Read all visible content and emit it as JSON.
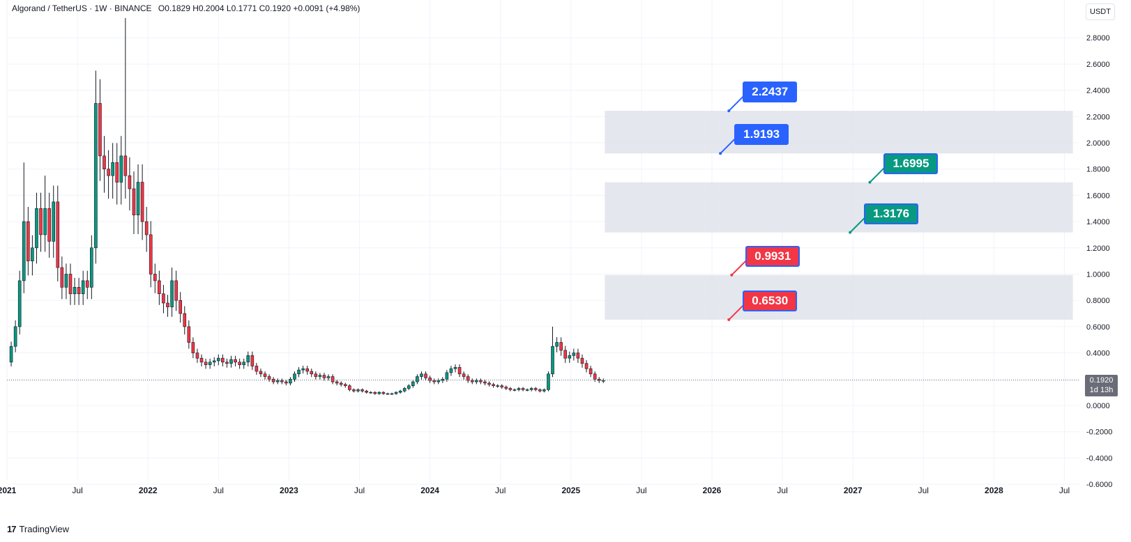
{
  "header": {
    "symbol": "Algorand / TetherUS · 1W · BINANCE",
    "ohlc": "O0.1829  H0.2004  L0.1771  C0.1920  +0.0091 (+4.98%)"
  },
  "currency": "USDT",
  "last_price": {
    "value": "0.1920",
    "countdown": "1d 13h"
  },
  "brand": {
    "logo": "17",
    "name": "TradingView"
  },
  "colors": {
    "up": "#089981",
    "down": "#f23645",
    "zone": "#e0e3eb",
    "callout_blue": "#2962ff",
    "callout_green": "#089981",
    "callout_red": "#f23645"
  },
  "chart_data": {
    "type": "candlestick",
    "y_tick_labels": [
      "2.8000",
      "2.6000",
      "2.4000",
      "2.2000",
      "2.0000",
      "1.8000",
      "1.6000",
      "1.4000",
      "1.2000",
      "1.0000",
      "0.8000",
      "0.6000",
      "0.4000",
      "0.2000",
      "0.0000",
      "-0.2000",
      "-0.4000",
      "-0.6000"
    ],
    "x_tick_labels": [
      "2021",
      "Jul",
      "2022",
      "Jul",
      "2023",
      "Jul",
      "2024",
      "Jul",
      "2025",
      "Jul",
      "2026",
      "Jul",
      "2027",
      "Jul",
      "2028",
      "Jul"
    ],
    "x_ticks": [
      2021.0,
      2021.5,
      2022.0,
      2022.5,
      2023.0,
      2023.5,
      2024.0,
      2024.5,
      2025.0,
      2025.5,
      2026.0,
      2026.5,
      2027.0,
      2027.5,
      2028.0,
      2028.5
    ],
    "ylim": [
      -0.65,
      2.95
    ],
    "xlim": [
      2021.0,
      2028.6
    ],
    "grid": true,
    "zones": [
      {
        "y_from": 1.9193,
        "y_to": 2.2437,
        "x_from": 2025.24,
        "x_to": 2028.56
      },
      {
        "y_from": 1.3176,
        "y_to": 1.6995,
        "x_from": 2025.24,
        "x_to": 2028.56
      },
      {
        "y_from": 0.653,
        "y_to": 0.9931,
        "x_from": 2025.24,
        "x_to": 2028.56
      }
    ],
    "annotations": [
      {
        "label": "2.2437",
        "value": 2.2437,
        "x": 2026.12,
        "color": "blue"
      },
      {
        "label": "1.9193",
        "value": 1.9193,
        "x": 2026.06,
        "color": "blue"
      },
      {
        "label": "1.6995",
        "value": 1.6995,
        "x": 2027.12,
        "color": "green"
      },
      {
        "label": "1.3176",
        "value": 1.3176,
        "x": 2026.98,
        "color": "green"
      },
      {
        "label": "0.9931",
        "value": 0.9931,
        "x": 2026.14,
        "color": "red"
      },
      {
        "label": "0.6530",
        "value": 0.653,
        "x": 2026.12,
        "color": "red"
      }
    ],
    "last_close": 0.192,
    "series": [
      {
        "t": 2021.0,
        "c": 0.33
      },
      {
        "t": 2021.03,
        "c": 0.45
      },
      {
        "t": 2021.06,
        "c": 0.6
      },
      {
        "t": 2021.09,
        "c": 0.95
      },
      {
        "t": 2021.12,
        "c": 1.4
      },
      {
        "t": 2021.15,
        "c": 1.1
      },
      {
        "t": 2021.18,
        "c": 1.2
      },
      {
        "t": 2021.21,
        "c": 1.5
      },
      {
        "t": 2021.24,
        "c": 1.3
      },
      {
        "t": 2021.27,
        "c": 1.5
      },
      {
        "t": 2021.3,
        "c": 1.25
      },
      {
        "t": 2021.33,
        "c": 1.55
      },
      {
        "t": 2021.36,
        "c": 1.05
      },
      {
        "t": 2021.39,
        "c": 0.9
      },
      {
        "t": 2021.42,
        "c": 1.0
      },
      {
        "t": 2021.45,
        "c": 0.85
      },
      {
        "t": 2021.48,
        "c": 0.9
      },
      {
        "t": 2021.51,
        "c": 0.85
      },
      {
        "t": 2021.54,
        "c": 0.95
      },
      {
        "t": 2021.57,
        "c": 0.9
      },
      {
        "t": 2021.6,
        "c": 1.2
      },
      {
        "t": 2021.63,
        "c": 2.3
      },
      {
        "t": 2021.66,
        "c": 1.9
      },
      {
        "t": 2021.69,
        "c": 1.8
      },
      {
        "t": 2021.72,
        "c": 1.75
      },
      {
        "t": 2021.75,
        "c": 1.85
      },
      {
        "t": 2021.78,
        "c": 1.7
      },
      {
        "t": 2021.81,
        "c": 1.9
      },
      {
        "t": 2021.84,
        "c": 1.75
      },
      {
        "t": 2021.87,
        "c": 1.65
      },
      {
        "t": 2021.9,
        "c": 1.45
      },
      {
        "t": 2021.93,
        "c": 1.7
      },
      {
        "t": 2021.96,
        "c": 1.4
      },
      {
        "t": 2021.99,
        "c": 1.3
      },
      {
        "t": 2022.02,
        "c": 1.0
      },
      {
        "t": 2022.05,
        "c": 0.95
      },
      {
        "t": 2022.08,
        "c": 0.85
      },
      {
        "t": 2022.11,
        "c": 0.78
      },
      {
        "t": 2022.14,
        "c": 0.75
      },
      {
        "t": 2022.17,
        "c": 0.95
      },
      {
        "t": 2022.2,
        "c": 0.8
      },
      {
        "t": 2022.23,
        "c": 0.7
      },
      {
        "t": 2022.26,
        "c": 0.6
      },
      {
        "t": 2022.29,
        "c": 0.48
      },
      {
        "t": 2022.32,
        "c": 0.4
      },
      {
        "t": 2022.35,
        "c": 0.36
      },
      {
        "t": 2022.38,
        "c": 0.33
      },
      {
        "t": 2022.41,
        "c": 0.31
      },
      {
        "t": 2022.44,
        "c": 0.33
      },
      {
        "t": 2022.47,
        "c": 0.34
      },
      {
        "t": 2022.5,
        "c": 0.36
      },
      {
        "t": 2022.53,
        "c": 0.33
      },
      {
        "t": 2022.56,
        "c": 0.32
      },
      {
        "t": 2022.59,
        "c": 0.35
      },
      {
        "t": 2022.62,
        "c": 0.33
      },
      {
        "t": 2022.65,
        "c": 0.31
      },
      {
        "t": 2022.68,
        "c": 0.33
      },
      {
        "t": 2022.71,
        "c": 0.38
      },
      {
        "t": 2022.74,
        "c": 0.3
      },
      {
        "t": 2022.77,
        "c": 0.26
      },
      {
        "t": 2022.8,
        "c": 0.24
      },
      {
        "t": 2022.83,
        "c": 0.22
      },
      {
        "t": 2022.86,
        "c": 0.2
      },
      {
        "t": 2022.89,
        "c": 0.18
      },
      {
        "t": 2022.92,
        "c": 0.19
      },
      {
        "t": 2022.95,
        "c": 0.18
      },
      {
        "t": 2022.98,
        "c": 0.17
      },
      {
        "t": 2023.01,
        "c": 0.2
      },
      {
        "t": 2023.04,
        "c": 0.24
      },
      {
        "t": 2023.07,
        "c": 0.27
      },
      {
        "t": 2023.1,
        "c": 0.28
      },
      {
        "t": 2023.13,
        "c": 0.26
      },
      {
        "t": 2023.16,
        "c": 0.24
      },
      {
        "t": 2023.19,
        "c": 0.22
      },
      {
        "t": 2023.22,
        "c": 0.23
      },
      {
        "t": 2023.25,
        "c": 0.21
      },
      {
        "t": 2023.28,
        "c": 0.22
      },
      {
        "t": 2023.31,
        "c": 0.18
      },
      {
        "t": 2023.34,
        "c": 0.17
      },
      {
        "t": 2023.37,
        "c": 0.16
      },
      {
        "t": 2023.4,
        "c": 0.15
      },
      {
        "t": 2023.43,
        "c": 0.12
      },
      {
        "t": 2023.46,
        "c": 0.11
      },
      {
        "t": 2023.49,
        "c": 0.12
      },
      {
        "t": 2023.52,
        "c": 0.11
      },
      {
        "t": 2023.55,
        "c": 0.1
      },
      {
        "t": 2023.58,
        "c": 0.1
      },
      {
        "t": 2023.61,
        "c": 0.09
      },
      {
        "t": 2023.64,
        "c": 0.1
      },
      {
        "t": 2023.67,
        "c": 0.09
      },
      {
        "t": 2023.7,
        "c": 0.09
      },
      {
        "t": 2023.73,
        "c": 0.09
      },
      {
        "t": 2023.76,
        "c": 0.1
      },
      {
        "t": 2023.79,
        "c": 0.11
      },
      {
        "t": 2023.82,
        "c": 0.13
      },
      {
        "t": 2023.85,
        "c": 0.15
      },
      {
        "t": 2023.88,
        "c": 0.18
      },
      {
        "t": 2023.91,
        "c": 0.22
      },
      {
        "t": 2023.94,
        "c": 0.24
      },
      {
        "t": 2023.97,
        "c": 0.21
      },
      {
        "t": 2024.0,
        "c": 0.19
      },
      {
        "t": 2024.03,
        "c": 0.18
      },
      {
        "t": 2024.06,
        "c": 0.19
      },
      {
        "t": 2024.09,
        "c": 0.2
      },
      {
        "t": 2024.12,
        "c": 0.25
      },
      {
        "t": 2024.15,
        "c": 0.28
      },
      {
        "t": 2024.18,
        "c": 0.29
      },
      {
        "t": 2024.21,
        "c": 0.24
      },
      {
        "t": 2024.24,
        "c": 0.22
      },
      {
        "t": 2024.27,
        "c": 0.19
      },
      {
        "t": 2024.3,
        "c": 0.18
      },
      {
        "t": 2024.33,
        "c": 0.19
      },
      {
        "t": 2024.36,
        "c": 0.18
      },
      {
        "t": 2024.39,
        "c": 0.17
      },
      {
        "t": 2024.42,
        "c": 0.16
      },
      {
        "t": 2024.45,
        "c": 0.15
      },
      {
        "t": 2024.48,
        "c": 0.15
      },
      {
        "t": 2024.51,
        "c": 0.14
      },
      {
        "t": 2024.54,
        "c": 0.13
      },
      {
        "t": 2024.57,
        "c": 0.12
      },
      {
        "t": 2024.6,
        "c": 0.12
      },
      {
        "t": 2024.63,
        "c": 0.13
      },
      {
        "t": 2024.66,
        "c": 0.12
      },
      {
        "t": 2024.69,
        "c": 0.12
      },
      {
        "t": 2024.72,
        "c": 0.13
      },
      {
        "t": 2024.75,
        "c": 0.12
      },
      {
        "t": 2024.78,
        "c": 0.11
      },
      {
        "t": 2024.81,
        "c": 0.12
      },
      {
        "t": 2024.84,
        "c": 0.24
      },
      {
        "t": 2024.87,
        "c": 0.45
      },
      {
        "t": 2024.9,
        "c": 0.48
      },
      {
        "t": 2024.93,
        "c": 0.42
      },
      {
        "t": 2024.96,
        "c": 0.36
      },
      {
        "t": 2024.99,
        "c": 0.38
      },
      {
        "t": 2025.02,
        "c": 0.4
      },
      {
        "t": 2025.05,
        "c": 0.36
      },
      {
        "t": 2025.08,
        "c": 0.32
      },
      {
        "t": 2025.11,
        "c": 0.28
      },
      {
        "t": 2025.14,
        "c": 0.24
      },
      {
        "t": 2025.17,
        "c": 0.2
      },
      {
        "t": 2025.2,
        "c": 0.19
      },
      {
        "t": 2025.23,
        "c": 0.19
      }
    ]
  }
}
